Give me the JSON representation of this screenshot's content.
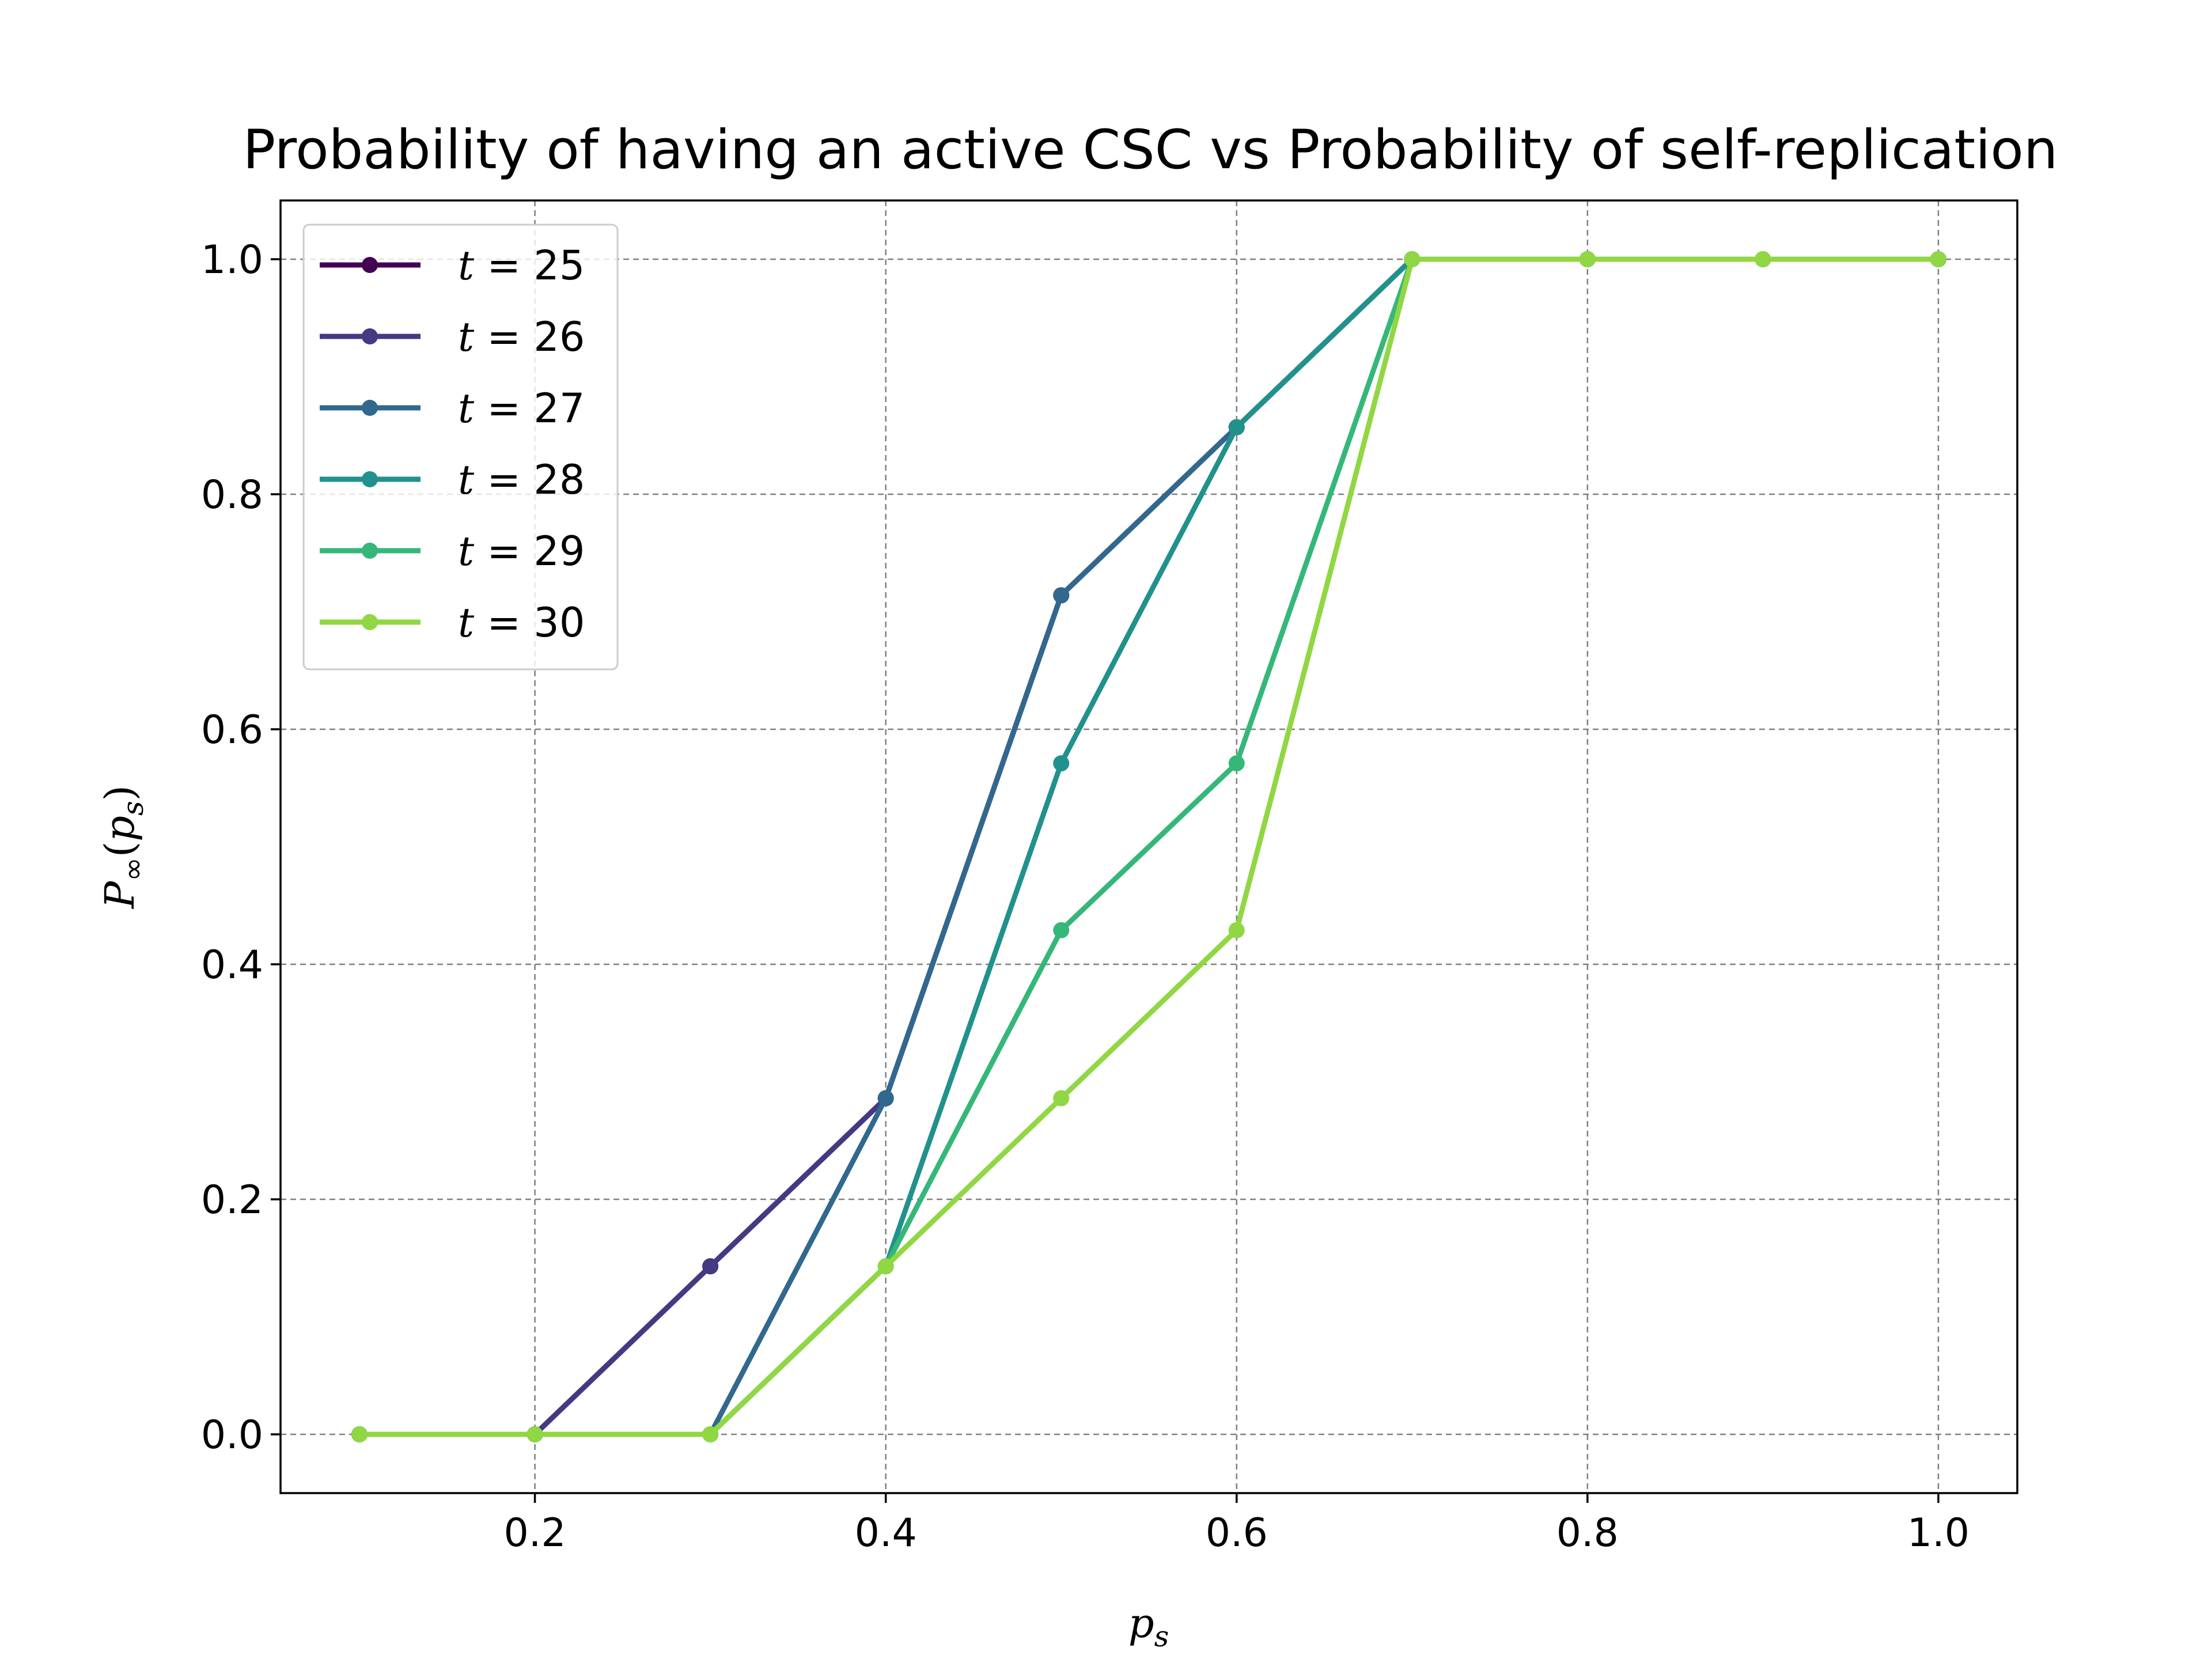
{
  "chart_data": {
    "type": "line",
    "title": "Probability of having an active CSC vs Probability of self-replication",
    "xlabel": "p_s",
    "ylabel": "P_∞(p_s)",
    "xlim": [
      0.055,
      1.045
    ],
    "ylim": [
      -0.05,
      1.05
    ],
    "xticks": [
      0.2,
      0.4,
      0.6,
      0.8,
      1.0
    ],
    "xtick_labels": [
      "0.2",
      "0.4",
      "0.6",
      "0.8",
      "1.0"
    ],
    "yticks": [
      0.0,
      0.2,
      0.4,
      0.6,
      0.8,
      1.0
    ],
    "ytick_labels": [
      "0.0",
      "0.2",
      "0.4",
      "0.6",
      "0.8",
      "1.0"
    ],
    "grid": true,
    "legend_position": "upper-left",
    "x": [
      0.1,
      0.2,
      0.3,
      0.4,
      0.5,
      0.6,
      0.7,
      0.8,
      0.9,
      1.0
    ],
    "series": [
      {
        "name": "t = 25",
        "label_var": "t",
        "label_val": "25",
        "color": "#440154",
        "values": [
          0.0,
          0.0,
          0.143,
          0.286,
          0.714,
          0.857,
          1.0,
          1.0,
          1.0,
          1.0
        ]
      },
      {
        "name": "t = 26",
        "label_var": "t",
        "label_val": "26",
        "color": "#443983",
        "values": [
          0.0,
          0.0,
          0.143,
          0.286,
          0.714,
          0.857,
          1.0,
          1.0,
          1.0,
          1.0
        ]
      },
      {
        "name": "t = 27",
        "label_var": "t",
        "label_val": "27",
        "color": "#31688e",
        "values": [
          0.0,
          0.0,
          0.0,
          0.286,
          0.714,
          0.857,
          1.0,
          1.0,
          1.0,
          1.0
        ]
      },
      {
        "name": "t = 28",
        "label_var": "t",
        "label_val": "28",
        "color": "#21918c",
        "values": [
          0.0,
          0.0,
          0.0,
          0.143,
          0.571,
          0.857,
          1.0,
          1.0,
          1.0,
          1.0
        ]
      },
      {
        "name": "t = 29",
        "label_var": "t",
        "label_val": "29",
        "color": "#35b779",
        "values": [
          0.0,
          0.0,
          0.0,
          0.143,
          0.429,
          0.571,
          1.0,
          1.0,
          1.0,
          1.0
        ]
      },
      {
        "name": "t = 30",
        "label_var": "t",
        "label_val": "30",
        "color": "#90d743",
        "values": [
          0.0,
          0.0,
          0.0,
          0.143,
          0.286,
          0.429,
          1.0,
          1.0,
          1.0,
          1.0
        ]
      }
    ]
  }
}
